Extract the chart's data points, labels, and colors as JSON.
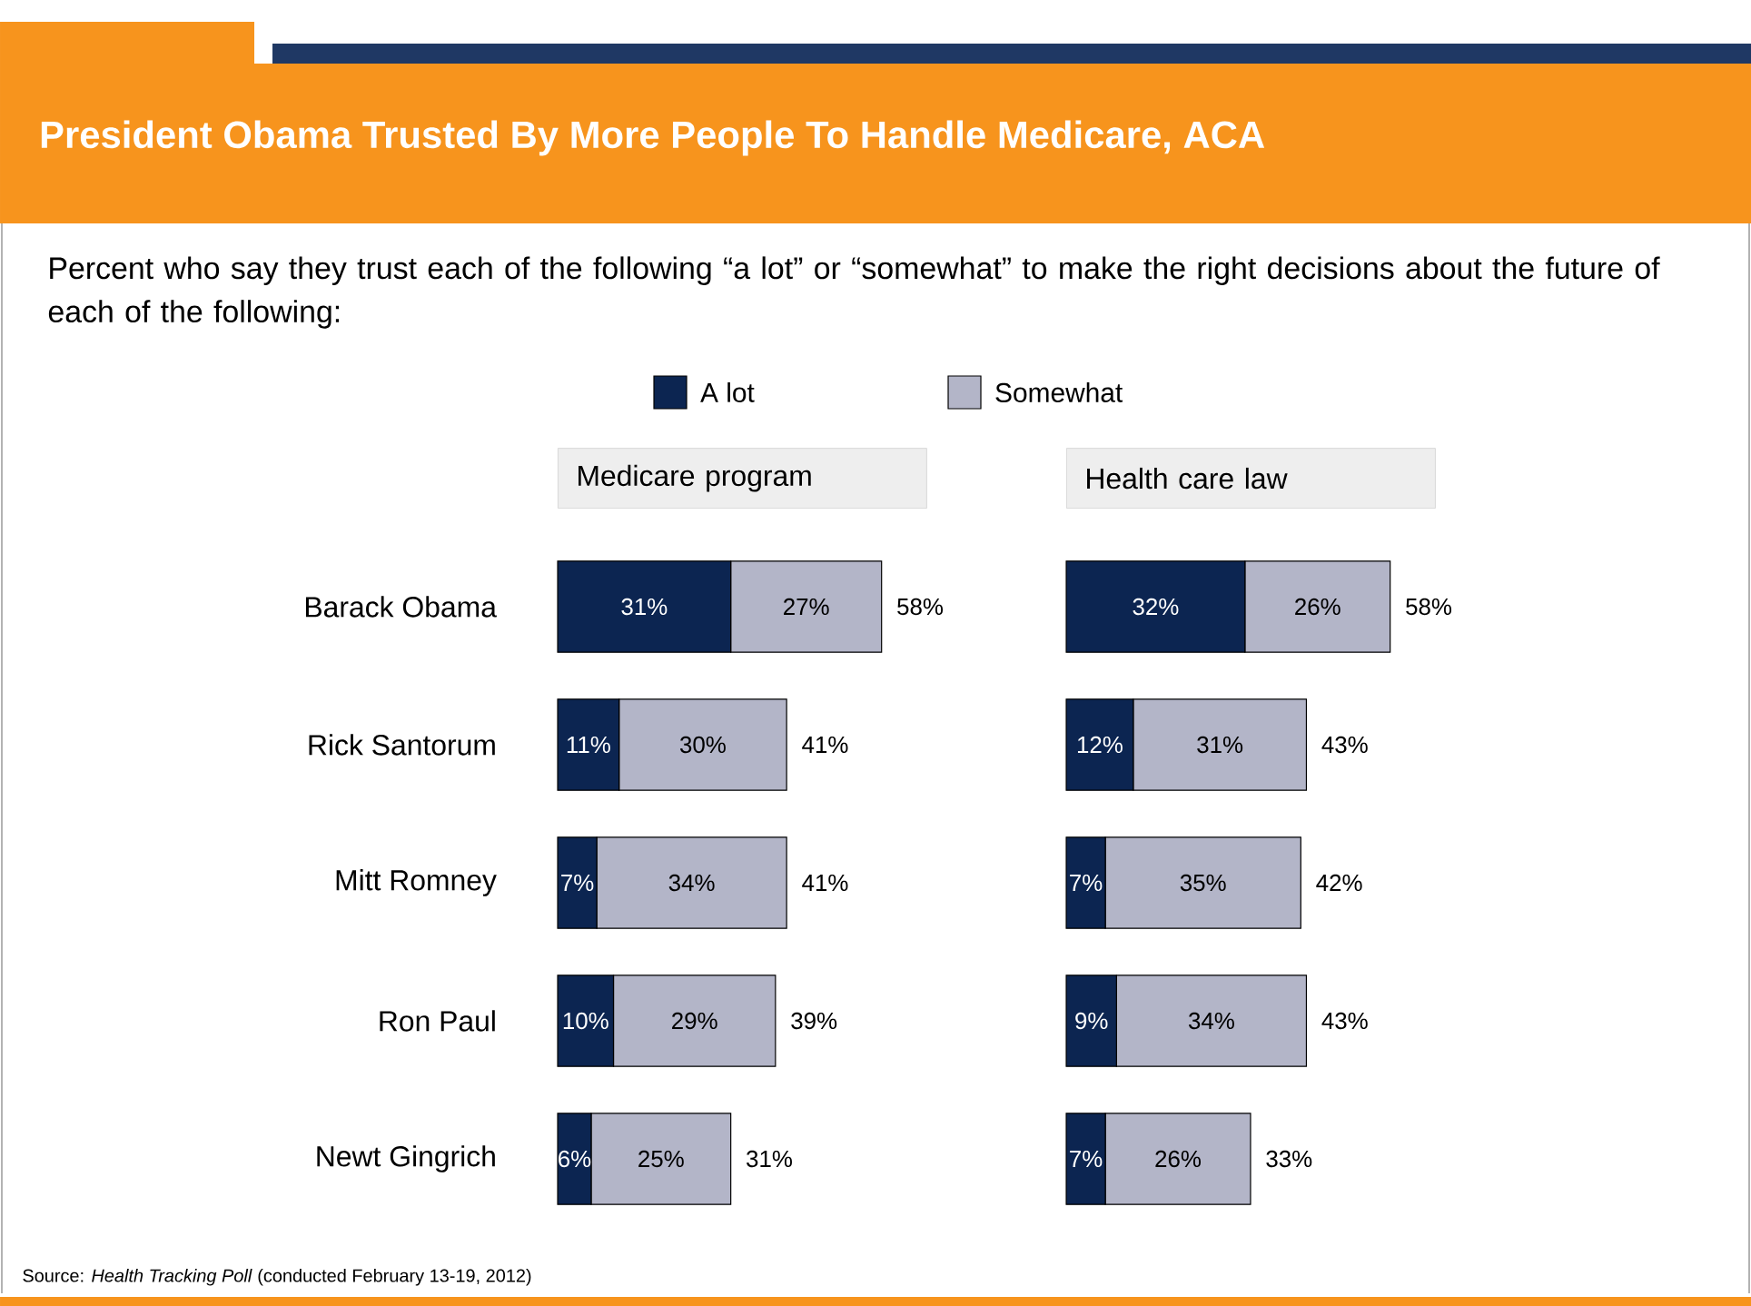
{
  "chart_data": [
    {
      "type": "other",
      "title": "President Obama Trusted By More People To Handle Medicare, ACA",
      "subtitle": "Percent who say they trust each of the following “a lot” or “somewhat” to make the right decisions about the future of each of the following:",
      "annotations": [
        "Source: *Health Tracking Poll* (conducted February 13-19, 2012)"
      ]
    },
    {
      "type": "bar",
      "orientation": "horizontal",
      "stacked": true,
      "title": "Medicare program",
      "categories": [
        "Barack Obama",
        "Rick Santorum",
        "Mitt Romney",
        "Ron Paul",
        "Newt Gingrich"
      ],
      "tick_labels": "y",
      "legend": "top",
      "totals": [
        "58%",
        "41%",
        "41%",
        "39%",
        "31%"
      ],
      "series": [
        {
          "name": "A lot",
          "color": "#0c2551",
          "values": [
            31,
            11,
            7,
            10,
            6
          ],
          "value_labels": [
            "31%",
            "11%",
            "7%",
            "10%",
            "6%"
          ]
        },
        {
          "name": "Somewhat",
          "color": "#b3b5c8",
          "values": [
            27,
            30,
            34,
            29,
            25
          ],
          "value_labels": [
            "27%",
            "30%",
            "34%",
            "29%",
            "25%"
          ]
        }
      ]
    },
    {
      "type": "bar",
      "orientation": "horizontal",
      "stacked": true,
      "title": "Health care law",
      "categories": [
        null,
        null,
        null,
        null,
        null
      ],
      "tick_labels": false,
      "totals": [
        "58%",
        "43%",
        "42%",
        "43%",
        "33%"
      ],
      "series": [
        {
          "color": "#0c2551",
          "values": [
            32,
            12,
            7,
            9,
            7
          ],
          "value_labels": [
            "32%",
            "12%",
            "7%",
            "9%",
            "7%"
          ]
        },
        {
          "color": "#b3b5c8",
          "values": [
            26,
            31,
            35,
            34,
            26
          ],
          "value_labels": [
            "26%",
            "31%",
            "35%",
            "34%",
            "26%"
          ]
        }
      ]
    }
  ]
}
